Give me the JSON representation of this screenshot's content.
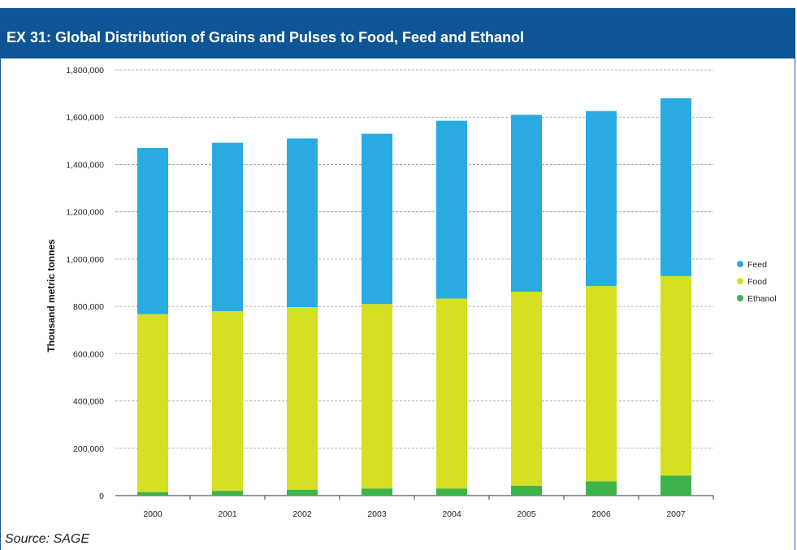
{
  "header": {
    "title": "EX 31: Global Distribution of Grains and Pulses to Food, Feed and Ethanol"
  },
  "source": "Source: SAGE",
  "colors": {
    "header_bg": "#0d5594",
    "feed": "#29abe2",
    "food": "#d4e021",
    "ethanol": "#3cb44b"
  },
  "chart_data": {
    "type": "bar",
    "stacked": true,
    "ylabel": "Thousand metric tonnes",
    "xlabel": "",
    "ylim": [
      0,
      1800000
    ],
    "yticks": [
      0,
      200000,
      400000,
      600000,
      800000,
      1000000,
      1200000,
      1400000,
      1600000,
      1800000
    ],
    "ytick_labels": [
      "0",
      "200,000",
      "400,000",
      "600,000",
      "800,000",
      "1,000,000",
      "1,200,000",
      "1,400,000",
      "1,600,000",
      "1,800,000"
    ],
    "categories": [
      "2000",
      "2001",
      "2002",
      "2003",
      "2004",
      "2005",
      "2006",
      "2007"
    ],
    "grid": "horizontal dashed",
    "legend_position": "right",
    "series": [
      {
        "name": "Ethanol",
        "color": "#3cb44b",
        "values": [
          15000,
          20000,
          25000,
          30000,
          30000,
          42000,
          60000,
          85000
        ]
      },
      {
        "name": "Food",
        "color": "#d4e021",
        "values": [
          752000,
          760000,
          772000,
          780000,
          803000,
          820000,
          826000,
          843000
        ]
      },
      {
        "name": "Feed",
        "color": "#29abe2",
        "values": [
          703000,
          712000,
          713000,
          720000,
          752000,
          748000,
          740000,
          752000
        ]
      }
    ],
    "legend_order": [
      "Feed",
      "Food",
      "Ethanol"
    ]
  }
}
